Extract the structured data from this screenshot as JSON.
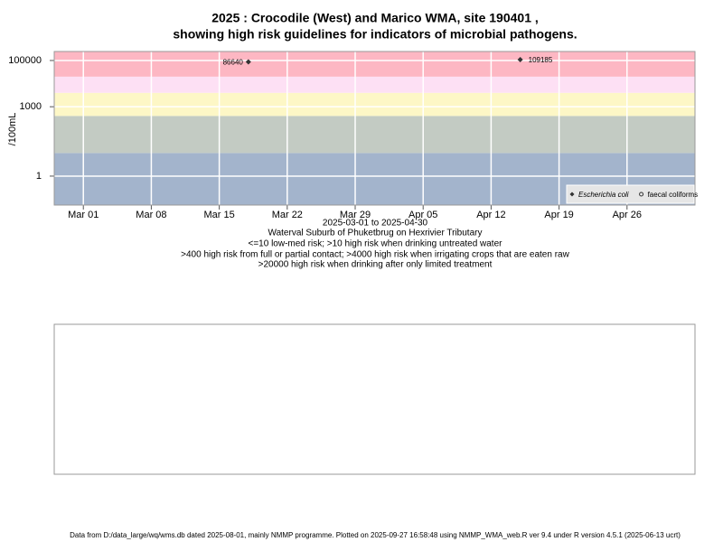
{
  "chart_data": {
    "type": "scatter",
    "title": [
      "2025 : Crocodile (West) and Marico WMA, site 190401 ,",
      "showing high risk guidelines for indicators of microbial pathogens."
    ],
    "subtitle": [
      "2025-03-01 to 2025-04-30",
      "Waterval Suburb of Phuketbrug on Hexrivier Tributary",
      "<=10 low-med risk; >10 high risk when drinking untreated water",
      ">400 high risk from full or partial contact; >4000 high risk when irrigating crops that are eaten raw",
      ">20000 high risk when drinking after only limited treatment"
    ],
    "y_label": "/100mL",
    "log_y": true,
    "grid": true,
    "legend_position": "bottom-right",
    "ylim": [
      0.056,
      245000
    ],
    "yticks": [
      1,
      1000,
      100000
    ],
    "xlim": [
      "2025-02-26",
      "2025-05-03"
    ],
    "xticks": [
      {
        "value": "2025-03-01",
        "label": "Mar 01"
      },
      {
        "value": "2025-03-08",
        "label": "Mar 08"
      },
      {
        "value": "2025-03-15",
        "label": "Mar 15"
      },
      {
        "value": "2025-03-22",
        "label": "Mar 22"
      },
      {
        "value": "2025-03-29",
        "label": "Mar 29"
      },
      {
        "value": "2025-04-05",
        "label": "Apr 05"
      },
      {
        "value": "2025-04-12",
        "label": "Apr 12"
      },
      {
        "value": "2025-04-19",
        "label": "Apr 19"
      },
      {
        "value": "2025-04-26",
        "label": "Apr 26"
      }
    ],
    "band_limits": [
      10,
      400,
      4000,
      20000
    ],
    "band_colors": [
      "#a3b4cc",
      "#c3cbc3",
      "#fdf7c6",
      "#fde0f4",
      "#fdb7c3"
    ],
    "series": [
      {
        "name": "Escherichia coli",
        "color": "#333333",
        "marker": "filled",
        "x": [
          "2025-03-18",
          "2025-04-15"
        ],
        "values": [
          86640,
          109185
        ],
        "value_labels": [
          "86640",
          "109185"
        ]
      },
      {
        "name": "faecal coliforms",
        "color": "#333333",
        "marker": "open",
        "x": [],
        "values": []
      }
    ],
    "footer": "Data from D:/data_large/wq/wms.db dated 2025-08-01, mainly NMMP programme. Plotted on 2025-09-27 16:58:48 using NMMP_WMA_web.R ver 9.4 under R version 4.5.1 (2025-06-13 ucrt)"
  }
}
